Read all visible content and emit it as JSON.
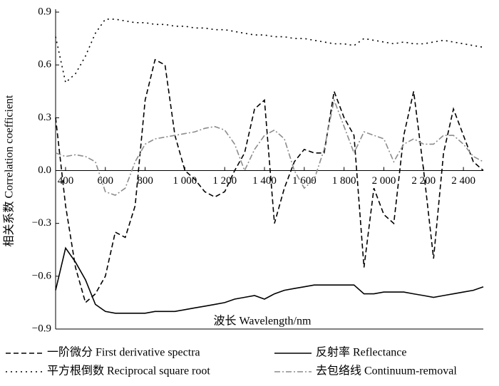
{
  "chart_data": {
    "type": "line",
    "xlabel": "波长 Wavelength/nm",
    "ylabel": "相关系数 Correlation coefficient",
    "x": [
      350,
      400,
      450,
      500,
      550,
      600,
      650,
      700,
      750,
      800,
      850,
      900,
      950,
      1000,
      1050,
      1100,
      1150,
      1200,
      1250,
      1300,
      1350,
      1400,
      1450,
      1500,
      1550,
      1600,
      1650,
      1700,
      1750,
      1800,
      1850,
      1900,
      1950,
      2000,
      2050,
      2100,
      2150,
      2200,
      2250,
      2300,
      2350,
      2400,
      2450,
      2500
    ],
    "xlim": [
      350,
      2500
    ],
    "xticks": [
      400,
      600,
      800,
      {
        "value": 1000,
        "label": "1 000"
      },
      {
        "value": 1200,
        "label": "1 200"
      },
      {
        "value": 1400,
        "label": "1 400"
      },
      {
        "value": 1600,
        "label": "1 600"
      },
      {
        "value": 1800,
        "label": "1 800"
      },
      {
        "value": 2000,
        "label": "2 000"
      },
      {
        "value": 2200,
        "label": "2 200"
      },
      {
        "value": 2400,
        "label": "2 400"
      }
    ],
    "ylim": [
      -0.9,
      0.9
    ],
    "yticks": [
      {
        "value": -0.9,
        "label": "−0.9"
      },
      {
        "value": -0.6,
        "label": "−0.6"
      },
      {
        "value": -0.3,
        "label": "−0.3"
      },
      {
        "value": 0,
        "label": "0.0"
      },
      0.3,
      0.6,
      0.9
    ],
    "series": [
      {
        "name": "一阶微分 First derivative spectra",
        "color": "#000000",
        "style": "dashed",
        "values": [
          0.3,
          -0.2,
          -0.55,
          -0.75,
          -0.7,
          -0.6,
          -0.35,
          -0.38,
          -0.2,
          0.4,
          0.63,
          0.6,
          0.2,
          0.0,
          -0.05,
          -0.12,
          -0.15,
          -0.12,
          0.0,
          0.1,
          0.35,
          0.4,
          -0.3,
          -0.1,
          0.05,
          0.12,
          0.1,
          0.1,
          0.45,
          0.3,
          0.2,
          -0.55,
          -0.1,
          -0.25,
          -0.3,
          0.2,
          0.45,
          0.0,
          -0.5,
          0.1,
          0.35,
          0.2,
          0.05,
          0.0
        ]
      },
      {
        "name": "反射率 Reflectance",
        "color": "#000000",
        "style": "solid",
        "values": [
          -0.68,
          -0.44,
          -0.52,
          -0.62,
          -0.76,
          -0.8,
          -0.81,
          -0.81,
          -0.81,
          -0.81,
          -0.8,
          -0.8,
          -0.8,
          -0.79,
          -0.78,
          -0.77,
          -0.76,
          -0.75,
          -0.73,
          -0.72,
          -0.71,
          -0.73,
          -0.7,
          -0.68,
          -0.67,
          -0.66,
          -0.65,
          -0.65,
          -0.65,
          -0.65,
          -0.65,
          -0.7,
          -0.7,
          -0.69,
          -0.69,
          -0.69,
          -0.7,
          -0.71,
          -0.72,
          -0.71,
          -0.7,
          -0.69,
          -0.68,
          -0.66
        ]
      },
      {
        "name": "平方根倒数 Reciprocal square root",
        "color": "#000000",
        "style": "dotted",
        "values": [
          0.76,
          0.5,
          0.55,
          0.65,
          0.78,
          0.86,
          0.86,
          0.85,
          0.84,
          0.84,
          0.83,
          0.83,
          0.82,
          0.82,
          0.81,
          0.81,
          0.8,
          0.8,
          0.79,
          0.78,
          0.77,
          0.77,
          0.76,
          0.76,
          0.75,
          0.75,
          0.74,
          0.73,
          0.72,
          0.72,
          0.71,
          0.75,
          0.74,
          0.73,
          0.72,
          0.73,
          0.72,
          0.72,
          0.73,
          0.74,
          0.73,
          0.72,
          0.71,
          0.7
        ]
      },
      {
        "name": "去包络线 Continuum-removal",
        "color": "#8c8c8c",
        "style": "dashdot",
        "values": [
          0.1,
          0.08,
          0.09,
          0.08,
          0.05,
          -0.12,
          -0.14,
          -0.1,
          0.05,
          0.15,
          0.18,
          0.19,
          0.2,
          0.21,
          0.22,
          0.24,
          0.25,
          0.23,
          0.15,
          0.0,
          0.12,
          0.2,
          0.23,
          0.18,
          0.0,
          -0.1,
          -0.05,
          0.12,
          0.4,
          0.25,
          0.1,
          0.22,
          0.2,
          0.18,
          0.05,
          0.15,
          0.18,
          0.15,
          0.15,
          0.2,
          0.2,
          0.15,
          0.08,
          0.05
        ]
      }
    ]
  }
}
